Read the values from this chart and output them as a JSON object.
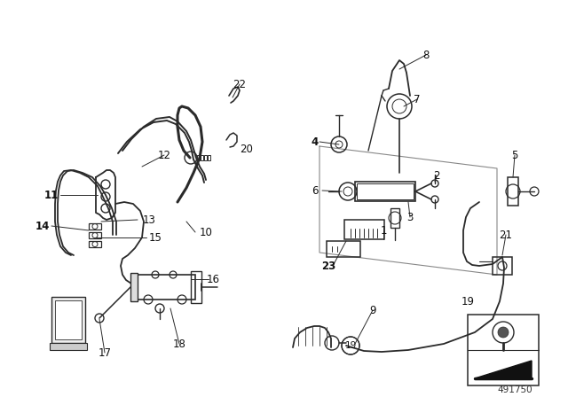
{
  "background": "#ffffff",
  "part_number_footer": "491750",
  "fig_width": 6.4,
  "fig_height": 4.48,
  "dpi": 100,
  "line_color": "#2a2a2a",
  "leader_color": "#2a2a2a",
  "lw": 1.3,
  "thin_lw": 0.7
}
